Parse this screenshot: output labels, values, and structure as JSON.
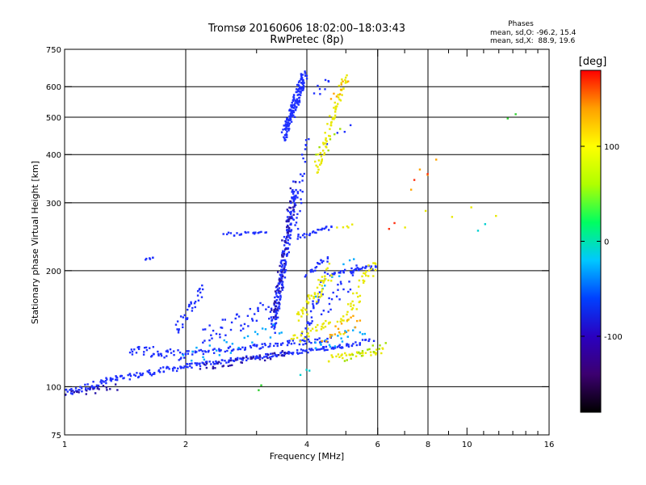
{
  "chart_data": {
    "type": "scatter",
    "title": "Tromsø 20160606 18:02:00–18:03:43",
    "subtitle": "RwPretec (8p)",
    "xlabel": "Frequency [MHz]",
    "ylabel": "Stationary phase Virtual Height [km]",
    "x_scale": "log",
    "y_scale": "log",
    "xlim": [
      1,
      16
    ],
    "ylim": [
      75,
      750
    ],
    "x_ticks": [
      1,
      2,
      4,
      6,
      8,
      10,
      16
    ],
    "x_tick_labels": [
      "1",
      "2",
      "4",
      "6",
      "8",
      "10",
      "16"
    ],
    "x_gridlines": [
      2,
      4,
      6,
      8
    ],
    "x_minor_ticks": [
      3,
      5,
      7,
      9,
      11,
      12,
      13,
      14,
      15
    ],
    "y_ticks": [
      75,
      100,
      200,
      300,
      400,
      500,
      600,
      750
    ],
    "y_tick_labels": [
      "75",
      "100",
      "200",
      "300",
      "400",
      "500",
      "600",
      "750"
    ],
    "y_gridlines": [
      100,
      200,
      300,
      400,
      500,
      600
    ],
    "grid": true,
    "stats": {
      "heading": "Phases",
      "line1": "mean, sd,O: -96.2, 15.4",
      "line2": "mean, sd,X:  88.9, 19.6"
    },
    "colorbar": {
      "label": "[deg]",
      "min": -180,
      "max": 180,
      "ticks": [
        100,
        0,
        -100
      ],
      "tick_labels": [
        "100",
        "0",
        "-100"
      ],
      "colors": [
        "#000000",
        "#3c0070",
        "#2a00c0",
        "#0040ff",
        "#00c8ff",
        "#00ff60",
        "#b0ff00",
        "#ffff00",
        "#ffa000",
        "#ff0000"
      ]
    },
    "series": [
      {
        "color": "#1f30ff",
        "segments": [
          {
            "f": [
              1.0,
              1.3
            ],
            "h": [
              96,
              104
            ],
            "n": 45,
            "jit": 0.022
          },
          {
            "f": [
              1.3,
              2.0
            ],
            "h": [
              104,
              113
            ],
            "n": 60,
            "jit": 0.018
          },
          {
            "f": [
              2.0,
              4.8
            ],
            "h": [
              113,
              127
            ],
            "n": 130,
            "jit": 0.012
          },
          {
            "f": [
              4.8,
              5.8
            ],
            "h": [
              127,
              132
            ],
            "n": 25,
            "jit": 0.012
          },
          {
            "f": [
              1.45,
              2.0
            ],
            "h": [
              125,
              120
            ],
            "n": 45,
            "jit": 0.03
          },
          {
            "f": [
              2.0,
              4.6
            ],
            "h": [
              122,
              133
            ],
            "n": 90,
            "jit": 0.015
          },
          {
            "f": [
              1.9,
              2.2
            ],
            "h": [
              140,
              180
            ],
            "n": 35,
            "jit": 0.04
          },
          {
            "f": [
              2.2,
              3.3
            ],
            "h": [
              135,
              160
            ],
            "n": 45,
            "jit": 0.06
          },
          {
            "f": [
              3.3,
              3.75
            ],
            "h": [
              140,
              330
            ],
            "n": 200,
            "jit": 0.06
          },
          {
            "f": [
              3.5,
              3.95
            ],
            "h": [
              450,
              640
            ],
            "n": 170,
            "jit": 0.04
          },
          {
            "f": [
              3.75,
              4.0
            ],
            "h": [
              250,
              450
            ],
            "n": 25,
            "jit": 0.04
          },
          {
            "f": [
              2.5,
              3.2
            ],
            "h": [
              248,
              252
            ],
            "n": 22,
            "jit": 0.01
          },
          {
            "f": [
              3.8,
              4.6
            ],
            "h": [
              243,
              260
            ],
            "n": 25,
            "jit": 0.012
          },
          {
            "f": [
              4.0,
              4.5
            ],
            "h": [
              195,
              215
            ],
            "n": 20,
            "jit": 0.02
          },
          {
            "f": [
              4.5,
              6.0
            ],
            "h": [
              196,
              205
            ],
            "n": 40,
            "jit": 0.012
          },
          {
            "f": [
              3.9,
              4.4
            ],
            "h": [
              130,
              190
            ],
            "n": 30,
            "jit": 0.05
          },
          {
            "f": [
              4.4,
              5.4
            ],
            "h": [
              160,
              200
            ],
            "n": 25,
            "jit": 0.05
          },
          {
            "f": [
              1.6,
              1.68
            ],
            "h": [
              214,
              216
            ],
            "n": 6,
            "jit": 0.005
          },
          {
            "f": [
              4.2,
              4.6
            ],
            "h": [
              580,
              620
            ],
            "n": 8,
            "jit": 0.03
          },
          {
            "f": [
              4.5,
              5.2
            ],
            "h": [
              420,
              470
            ],
            "n": 4,
            "jit": 0.05
          }
        ]
      },
      {
        "color": "#2a16a8",
        "segments": [
          {
            "f": [
              1.0,
              1.35
            ],
            "h": [
              95,
              100
            ],
            "n": 20,
            "jit": 0.02
          },
          {
            "f": [
              2.2,
              3.6
            ],
            "h": [
              112,
              122
            ],
            "n": 40,
            "jit": 0.02
          },
          {
            "f": [
              3.3,
              3.7
            ],
            "h": [
              150,
              320
            ],
            "n": 60,
            "jit": 0.06
          }
        ]
      },
      {
        "color": "#00aaff",
        "segments": [
          {
            "f": [
              2.0,
              3.5
            ],
            "h": [
              118,
              140
            ],
            "n": 25,
            "jit": 0.05
          },
          {
            "f": [
              4.2,
              5.5
            ],
            "h": [
              125,
              140
            ],
            "n": 20,
            "jit": 0.04
          },
          {
            "f": [
              4.2,
              5.2
            ],
            "h": [
              180,
              210
            ],
            "n": 8,
            "jit": 0.05
          }
        ]
      },
      {
        "color": "#e8e800",
        "segments": [
          {
            "f": [
              4.2,
              5.0
            ],
            "h": [
              360,
              640
            ],
            "n": 70,
            "jit": 0.03
          },
          {
            "f": [
              3.8,
              4.6
            ],
            "h": [
              150,
              200
            ],
            "n": 55,
            "jit": 0.05
          },
          {
            "f": [
              4.8,
              5.9
            ],
            "h": [
              140,
              210
            ],
            "n": 45,
            "jit": 0.05
          },
          {
            "f": [
              4.5,
              6.2
            ],
            "h": [
              118,
              125
            ],
            "n": 35,
            "jit": 0.02
          },
          {
            "f": [
              3.7,
              4.6
            ],
            "h": [
              133,
              145
            ],
            "n": 30,
            "jit": 0.03
          },
          {
            "f": [
              4.8,
              5.2
            ],
            "h": [
              258,
              262
            ],
            "n": 5,
            "jit": 0.01
          },
          {
            "f": [
              7.0,
              11.8
            ],
            "h": [
              270,
              290
            ],
            "n": 5,
            "jit": 0.05
          }
        ]
      },
      {
        "color": "#ffa500",
        "segments": [
          {
            "f": [
              4.4,
              5.4
            ],
            "h": [
              135,
              150
            ],
            "n": 18,
            "jit": 0.04
          },
          {
            "f": [
              4.6,
              5.0
            ],
            "h": [
              550,
              620
            ],
            "n": 8,
            "jit": 0.03
          },
          {
            "f": [
              7.2,
              8.4
            ],
            "h": [
              330,
              395
            ],
            "n": 4,
            "jit": 0.05
          }
        ]
      },
      {
        "color": "#a0e000",
        "segments": [
          {
            "f": [
              5.0,
              6.2
            ],
            "h": [
              118,
              128
            ],
            "n": 15,
            "jit": 0.02
          },
          {
            "f": [
              4.2,
              4.9
            ],
            "h": [
              400,
              450
            ],
            "n": 6,
            "jit": 0.04
          }
        ]
      },
      {
        "color": "#ff3010",
        "segments": [
          {
            "f": [
              7.5,
              8.0
            ],
            "h": [
              340,
              350
            ],
            "n": 2,
            "jit": 0.02
          },
          {
            "f": [
              6.5,
              6.7
            ],
            "h": [
              255,
              262
            ],
            "n": 2,
            "jit": 0.02
          }
        ]
      },
      {
        "color": "#30d030",
        "segments": [
          {
            "f": [
              12.8,
              13.2
            ],
            "h": [
              500,
              510
            ],
            "n": 2,
            "jit": 0.01
          },
          {
            "f": [
              3.0,
              3.1
            ],
            "h": [
              98,
              100
            ],
            "n": 2,
            "jit": 0.01
          }
        ]
      },
      {
        "color": "#00d0d0",
        "segments": [
          {
            "f": [
              10.8,
              11.2
            ],
            "h": [
              255,
              262
            ],
            "n": 2,
            "jit": 0.01
          },
          {
            "f": [
              3.9,
              4.1
            ],
            "h": [
              108,
              112
            ],
            "n": 3,
            "jit": 0.02
          }
        ]
      }
    ]
  }
}
